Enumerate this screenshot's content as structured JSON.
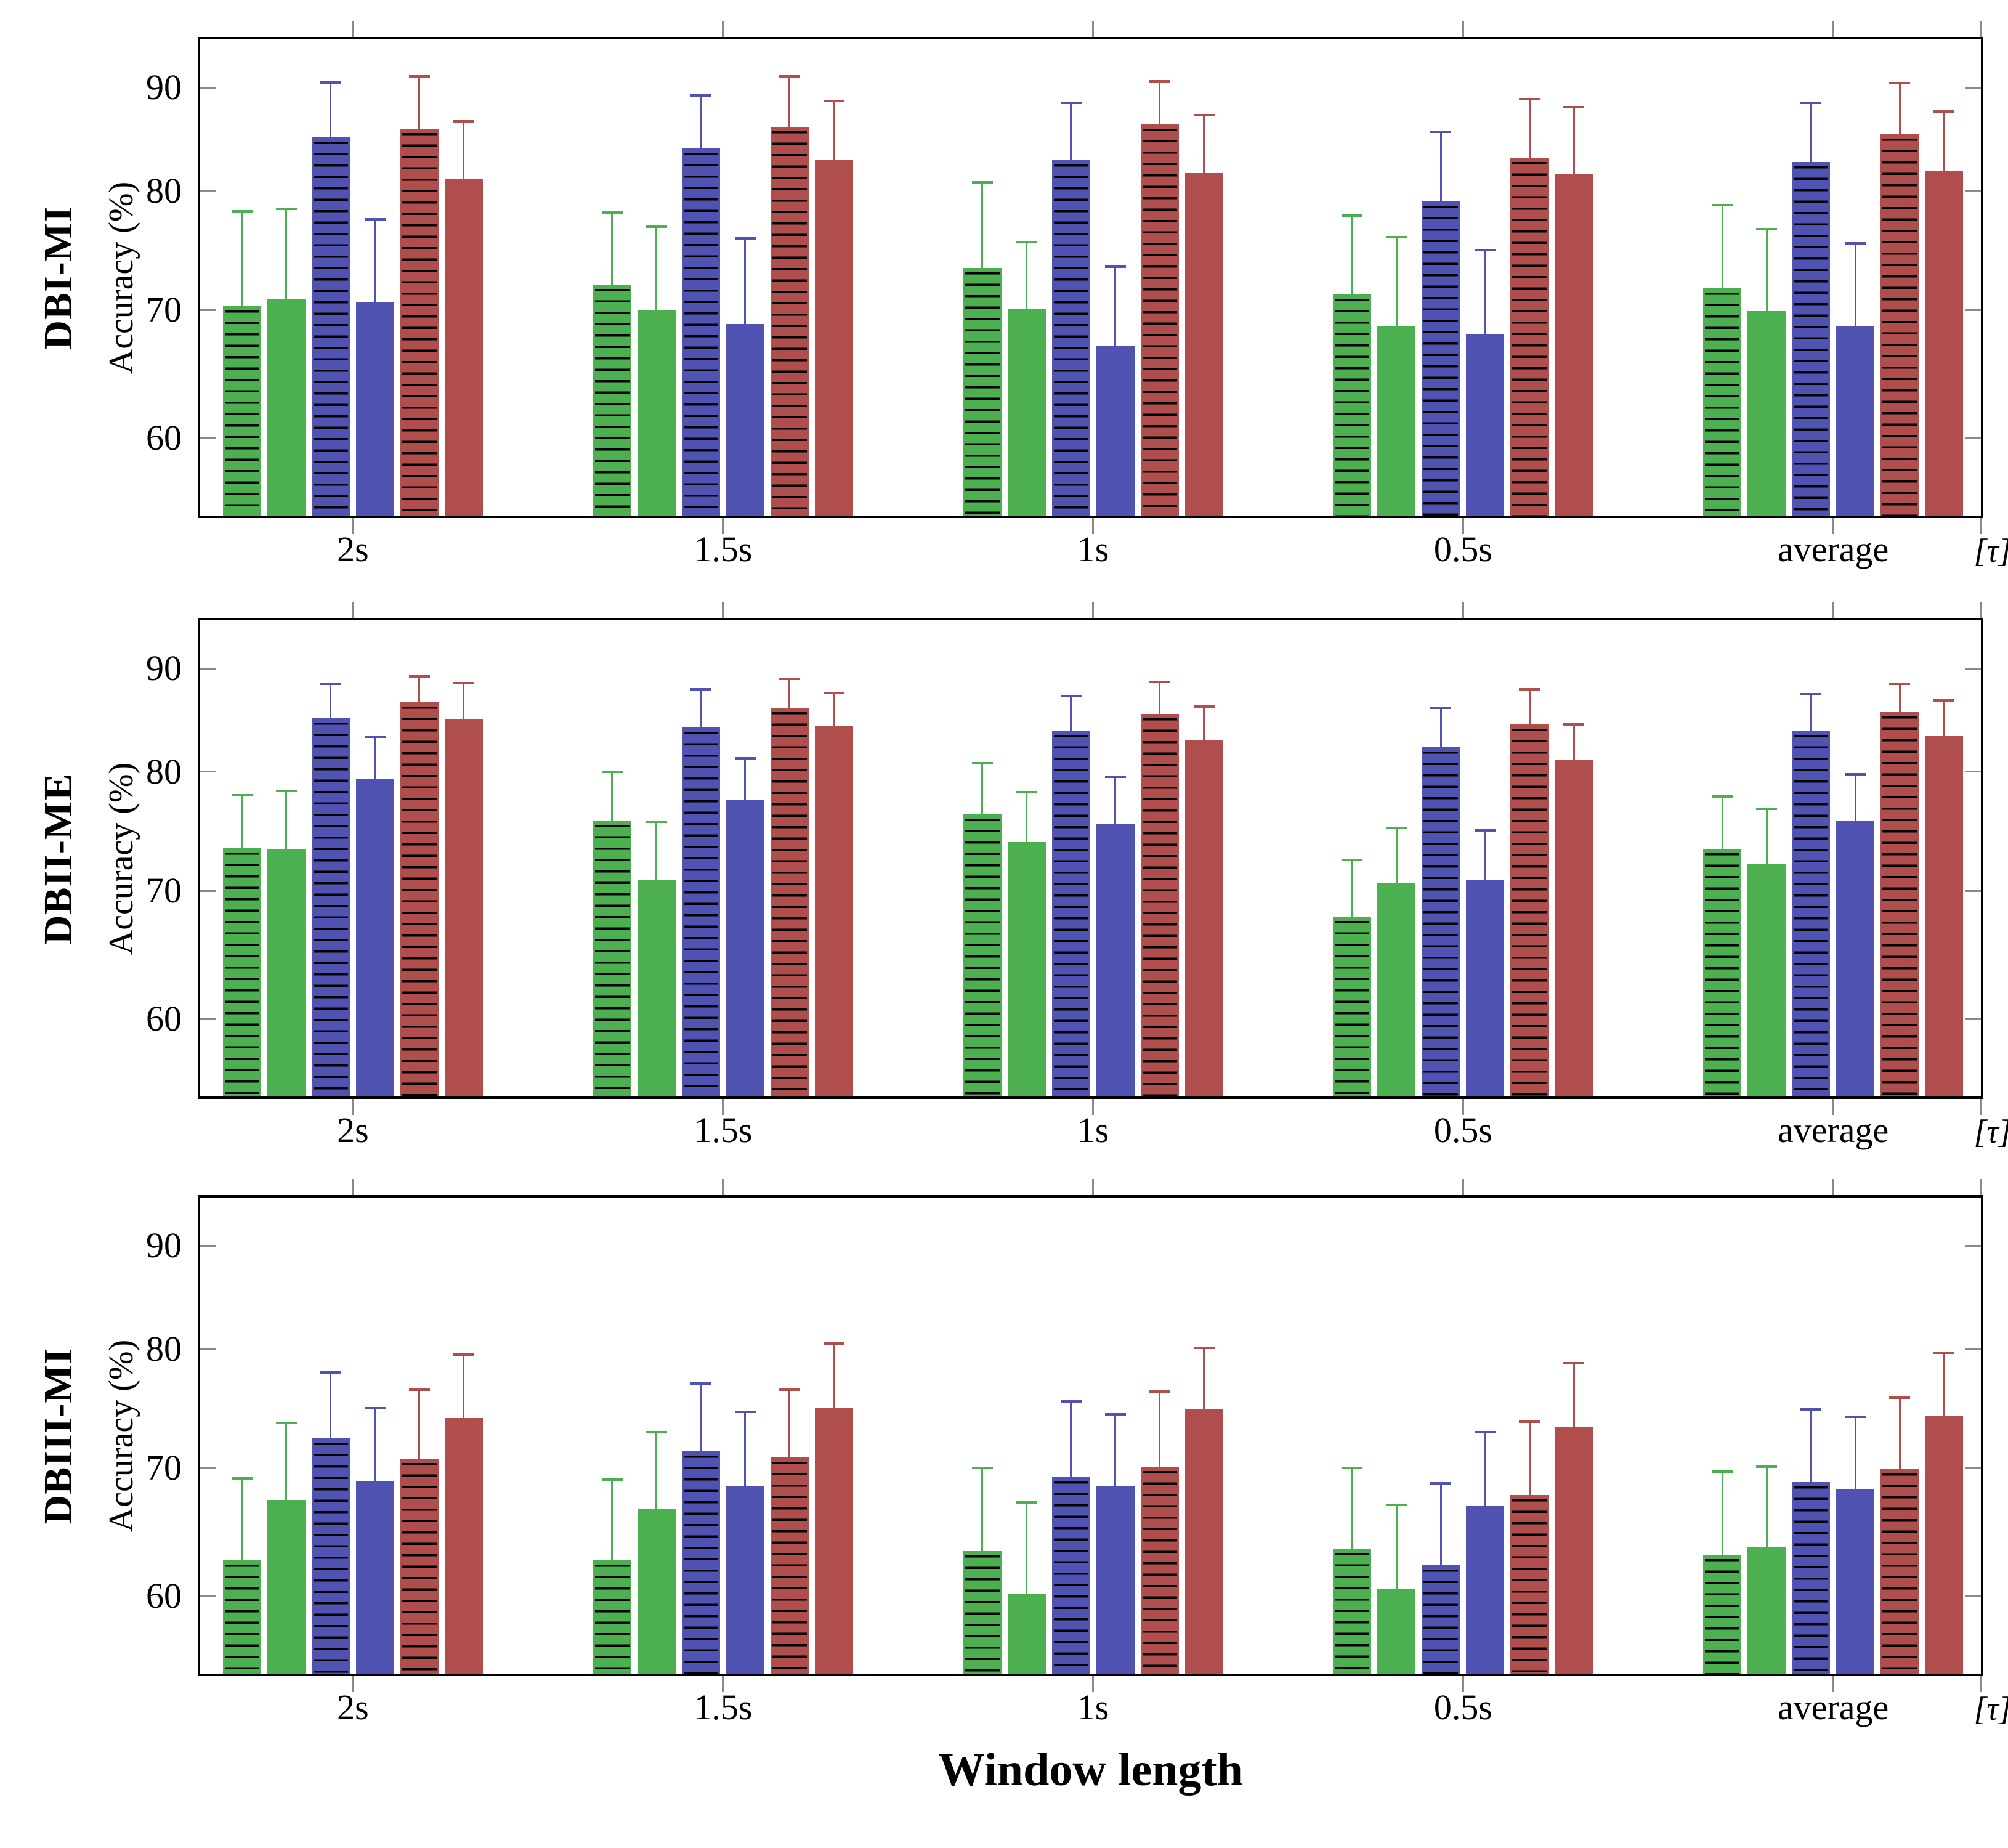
{
  "figure": {
    "xlabel": "Window length",
    "x_unit_label": "[τ]",
    "background": "#ffffff",
    "tick_color": "#8a8a8a",
    "border_color": "#000000"
  },
  "chart_data": [
    {
      "type": "bar",
      "row_label": "DBI-MI",
      "ylabel": "Accuracy (%)",
      "categories": [
        "2s",
        "1.5s",
        "1s",
        "0.5s",
        "average"
      ],
      "yticks": [
        90,
        80,
        70,
        60
      ],
      "ylim": [
        55,
        95
      ],
      "grid": false,
      "legend": "none",
      "error_bars": "upper only",
      "series": [
        {
          "name": "green-hatched",
          "color": "#4caf50",
          "hatch": true,
          "values": [
            70.3,
            72.1,
            73.5,
            71.3,
            71.8
          ],
          "error_top": [
            78.3,
            78.2,
            80.8,
            77.9,
            78.8
          ]
        },
        {
          "name": "green-solid",
          "color": "#4caf50",
          "hatch": false,
          "values": [
            70.9,
            70.0,
            70.1,
            68.7,
            69.9
          ],
          "error_top": [
            78.5,
            77.0,
            75.7,
            76.1,
            76.8
          ]
        },
        {
          "name": "blue-hatched",
          "color": "#5153b3",
          "hatch": true,
          "values": [
            85.2,
            84.1,
            83.0,
            79.1,
            82.8
          ],
          "error_top": [
            90.5,
            89.2,
            88.5,
            85.7,
            88.5
          ]
        },
        {
          "name": "blue-solid",
          "color": "#5153b3",
          "hatch": false,
          "values": [
            70.7,
            68.9,
            67.2,
            68.1,
            68.7
          ],
          "error_top": [
            77.6,
            76.0,
            73.6,
            75.0,
            75.6
          ]
        },
        {
          "name": "red-hatched",
          "color": "#b04d4d",
          "hatch": true,
          "values": [
            86.0,
            86.2,
            86.4,
            83.2,
            85.5
          ],
          "error_top": [
            91.1,
            91.1,
            90.6,
            88.9,
            90.4
          ]
        },
        {
          "name": "red-solid",
          "color": "#b04d4d",
          "hatch": false,
          "values": [
            81.1,
            83.0,
            81.7,
            81.6,
            81.9
          ],
          "error_top": [
            86.7,
            88.7,
            87.3,
            88.1,
            87.7
          ]
        }
      ]
    },
    {
      "type": "bar",
      "row_label": "DBII-ME",
      "ylabel": "Accuracy (%)",
      "categories": [
        "2s",
        "1.5s",
        "1s",
        "0.5s",
        "average"
      ],
      "yticks": [
        90,
        80,
        70,
        60
      ],
      "ylim": [
        55,
        95
      ],
      "grid": false,
      "legend": "none",
      "error_bars": "upper only",
      "series": [
        {
          "name": "green-hatched",
          "color": "#4caf50",
          "hatch": true,
          "values": [
            73.6,
            75.9,
            76.4,
            68.0,
            73.5
          ],
          "error_top": [
            78.0,
            80.0,
            80.8,
            72.6,
            77.9
          ]
        },
        {
          "name": "green-solid",
          "color": "#4caf50",
          "hatch": false,
          "values": [
            73.5,
            70.9,
            74.1,
            70.7,
            72.3
          ],
          "error_top": [
            78.4,
            75.8,
            78.3,
            75.3,
            76.9
          ]
        },
        {
          "name": "blue-hatched",
          "color": "#5153b3",
          "hatch": true,
          "values": [
            85.2,
            84.3,
            84.0,
            82.4,
            84.0
          ],
          "error_top": [
            88.5,
            88.0,
            87.3,
            86.2,
            87.5
          ]
        },
        {
          "name": "blue-solid",
          "color": "#5153b3",
          "hatch": false,
          "values": [
            79.4,
            77.6,
            75.6,
            70.9,
            75.9
          ],
          "error_top": [
            83.4,
            81.3,
            79.6,
            75.1,
            79.8
          ]
        },
        {
          "name": "red-hatched",
          "color": "#b04d4d",
          "hatch": true,
          "values": [
            86.7,
            86.2,
            85.6,
            84.6,
            85.8
          ],
          "error_top": [
            89.2,
            89.0,
            88.7,
            88.0,
            88.5
          ]
        },
        {
          "name": "red-solid",
          "color": "#b04d4d",
          "hatch": false,
          "values": [
            85.1,
            84.4,
            83.1,
            81.1,
            83.5
          ],
          "error_top": [
            88.6,
            87.6,
            86.3,
            84.6,
            86.9
          ]
        }
      ]
    },
    {
      "type": "bar",
      "row_label": "DBIII-MI",
      "ylabel": "Accuracy (%)",
      "categories": [
        "2s",
        "1.5s",
        "1s",
        "0.5s",
        "average"
      ],
      "yticks": [
        90,
        80,
        70,
        60
      ],
      "ylim": [
        55,
        95
      ],
      "grid": false,
      "legend": "none",
      "error_bars": "upper only",
      "series": [
        {
          "name": "green-hatched",
          "color": "#4caf50",
          "hatch": true,
          "values": [
            62.8,
            62.8,
            63.5,
            63.7,
            63.2
          ],
          "error_top": [
            69.2,
            69.1,
            70.0,
            70.0,
            69.7
          ]
        },
        {
          "name": "green-solid",
          "color": "#4caf50",
          "hatch": false,
          "values": [
            67.5,
            66.8,
            60.2,
            60.6,
            63.8
          ],
          "error_top": [
            73.8,
            73.0,
            67.3,
            67.1,
            70.1
          ]
        },
        {
          "name": "blue-hatched",
          "color": "#5153b3",
          "hatch": true,
          "values": [
            72.5,
            71.4,
            69.3,
            62.4,
            68.9
          ],
          "error_top": [
            78.0,
            77.1,
            75.6,
            68.8,
            74.9
          ]
        },
        {
          "name": "blue-solid",
          "color": "#5153b3",
          "hatch": false,
          "values": [
            69.0,
            68.6,
            68.6,
            67.0,
            68.3
          ],
          "error_top": [
            75.0,
            74.7,
            74.5,
            73.0,
            74.3
          ]
        },
        {
          "name": "red-hatched",
          "color": "#b04d4d",
          "hatch": true,
          "values": [
            70.8,
            70.9,
            70.1,
            67.9,
            69.9
          ],
          "error_top": [
            76.6,
            76.6,
            76.4,
            73.9,
            75.9
          ]
        },
        {
          "name": "red-solid",
          "color": "#b04d4d",
          "hatch": false,
          "values": [
            74.2,
            75.0,
            74.9,
            73.4,
            74.4
          ],
          "error_top": [
            79.5,
            80.5,
            80.1,
            78.8,
            79.7
          ]
        }
      ]
    }
  ]
}
